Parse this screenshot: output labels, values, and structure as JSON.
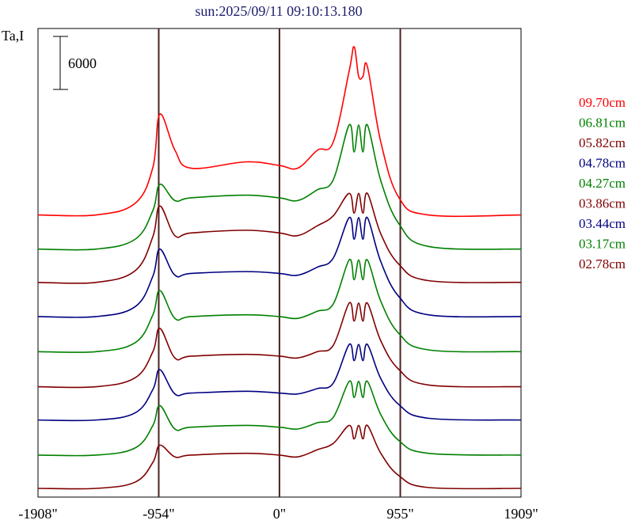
{
  "chart_data": {
    "type": "line",
    "title": "sun:2025/09/11 09:10:13.180",
    "ylabel": "Ta,I",
    "scale_bar_label": "6000",
    "scale_bar_value": 6000,
    "xlim": [
      -1908,
      1909
    ],
    "x_ticks": [
      {
        "value": -1908,
        "label": "-1908\""
      },
      {
        "value": -954,
        "label": "-954\""
      },
      {
        "value": 0,
        "label": "0\""
      },
      {
        "value": 955,
        "label": "955\""
      },
      {
        "value": 1909,
        "label": "1909\""
      }
    ],
    "vertical_markers": [
      -954,
      0,
      955
    ],
    "marker_color": "#4a2222",
    "legend_placement": "right",
    "x": [
      -1908,
      -1450,
      -1140,
      -1000,
      -945,
      -826,
      -700,
      -263,
      0,
      144,
      300,
      425,
      551,
      590,
      626,
      660,
      695,
      801,
      945,
      1176,
      1909
    ],
    "series": [
      {
        "name": "09.70cm",
        "color": "#ff0000",
        "offset": 30400,
        "values": [
          0,
          0,
          1300,
          5300,
          11200,
          7200,
          5200,
          5900,
          5500,
          5200,
          7200,
          8100,
          16000,
          18700,
          15400,
          15400,
          16500,
          8100,
          1900,
          0,
          0
        ]
      },
      {
        "name": "06.81cm",
        "color": "#008000",
        "offset": 26600,
        "values": [
          0,
          0,
          1100,
          4300,
          7200,
          5400,
          5700,
          6000,
          5700,
          5400,
          6600,
          7700,
          13800,
          10800,
          13800,
          10800,
          13800,
          7600,
          2800,
          300,
          0
        ]
      },
      {
        "name": "05.82cm",
        "color": "#800000",
        "offset": 22900,
        "values": [
          0,
          0,
          1300,
          5100,
          8500,
          5200,
          5500,
          5800,
          5500,
          5200,
          6300,
          7400,
          9900,
          7700,
          9900,
          7700,
          9900,
          5400,
          2000,
          200,
          0
        ]
      },
      {
        "name": "04.78cm",
        "color": "#000080",
        "offset": 19100,
        "values": [
          0,
          0,
          1100,
          4500,
          7500,
          4600,
          4800,
          5000,
          4800,
          4600,
          5500,
          6500,
          11000,
          8600,
          11000,
          8600,
          11000,
          6100,
          2200,
          200,
          0
        ]
      },
      {
        "name": "04.27cm",
        "color": "#008000",
        "offset": 15200,
        "values": [
          0,
          0,
          1000,
          4100,
          6800,
          3700,
          3900,
          4100,
          3900,
          3700,
          4500,
          5300,
          10200,
          8000,
          10200,
          8000,
          10200,
          5600,
          2000,
          200,
          0
        ]
      },
      {
        "name": "03.86cm",
        "color": "#800000",
        "offset": 11300,
        "values": [
          0,
          0,
          1000,
          3900,
          6500,
          3200,
          3400,
          3600,
          3400,
          3200,
          3900,
          4600,
          9300,
          7300,
          9300,
          7300,
          9300,
          5100,
          1900,
          200,
          0
        ]
      },
      {
        "name": "03.44cm",
        "color": "#000080",
        "offset": 7600,
        "values": [
          0,
          0,
          800,
          3400,
          5600,
          2900,
          3000,
          3200,
          3000,
          2900,
          3500,
          4100,
          8400,
          6600,
          8400,
          6600,
          8400,
          4600,
          1700,
          200,
          0
        ]
      },
      {
        "name": "03.17cm",
        "color": "#008000",
        "offset": 3700,
        "values": [
          0,
          0,
          800,
          3300,
          5500,
          2900,
          3100,
          3300,
          3100,
          2900,
          3600,
          4200,
          8200,
          6400,
          8200,
          6400,
          8200,
          4500,
          1600,
          200,
          0
        ]
      },
      {
        "name": "02.78cm",
        "color": "#800000",
        "offset": 0,
        "values": [
          0,
          0,
          700,
          2900,
          4800,
          3500,
          3700,
          3900,
          3700,
          3500,
          4300,
          5000,
          7000,
          5500,
          7000,
          5500,
          7000,
          3900,
          1400,
          100,
          0
        ]
      }
    ],
    "title_color": "#1c1c6c"
  }
}
